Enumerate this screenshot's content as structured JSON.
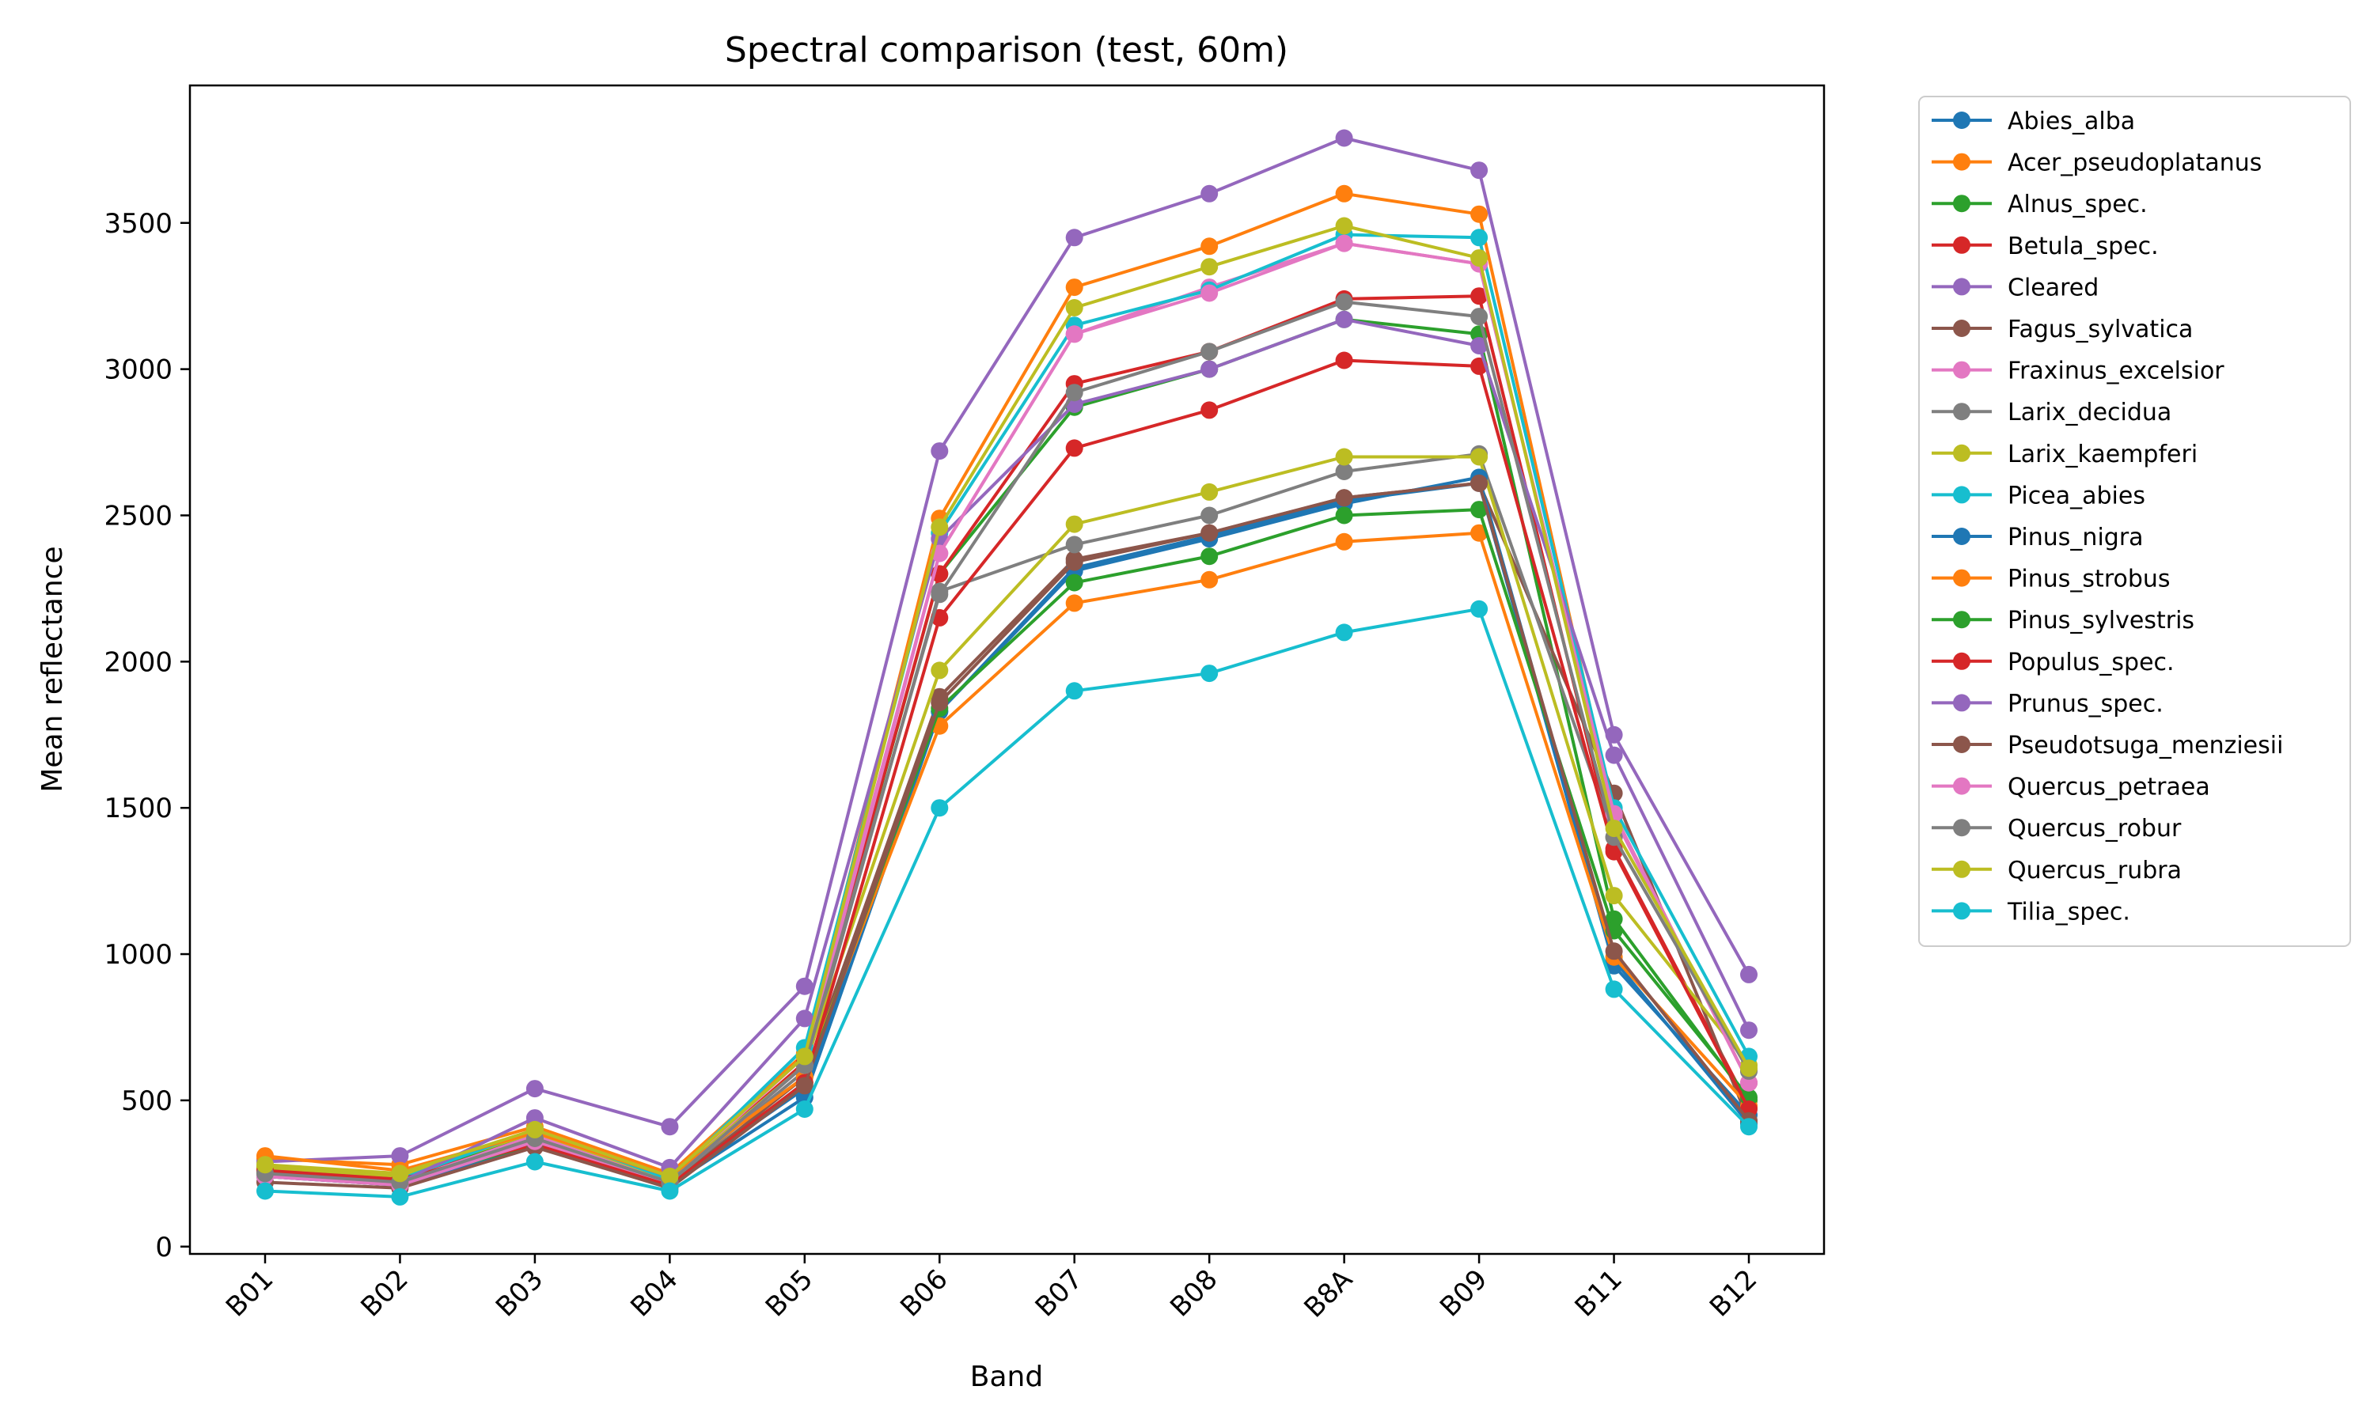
{
  "chart_data": {
    "type": "line",
    "title": "Spectral comparison (test, 60m)",
    "xlabel": "Band",
    "ylabel": "Mean reflectance",
    "categories": [
      "B01",
      "B02",
      "B03",
      "B04",
      "B05",
      "B06",
      "B07",
      "B08",
      "B8A",
      "B09",
      "B11",
      "B12"
    ],
    "ylim": [
      -25,
      3970
    ],
    "yticks": [
      0,
      500,
      1000,
      1500,
      2000,
      2500,
      3000,
      3500
    ],
    "grid": false,
    "legend_position": "outside-right",
    "series": [
      {
        "name": "Abies_alba",
        "color": "#1f77b4",
        "values": [
          260,
          230,
          360,
          220,
          540,
          1830,
          2320,
          2430,
          2550,
          2610,
          960,
          450
        ]
      },
      {
        "name": "Acer_pseudoplatanus",
        "color": "#ff7f0e",
        "values": [
          300,
          280,
          410,
          250,
          660,
          2490,
          3280,
          3420,
          3600,
          3530,
          1480,
          560
        ]
      },
      {
        "name": "Alnus_spec.",
        "color": "#2ca02c",
        "values": [
          270,
          240,
          380,
          230,
          620,
          2300,
          2870,
          3000,
          3170,
          3120,
          1120,
          500
        ]
      },
      {
        "name": "Betula_spec.",
        "color": "#d62728",
        "values": [
          260,
          230,
          370,
          225,
          630,
          2300,
          2950,
          3060,
          3240,
          3250,
          1360,
          480
        ]
      },
      {
        "name": "Cleared",
        "color": "#9467bd",
        "values": [
          290,
          310,
          540,
          410,
          890,
          2720,
          3450,
          3600,
          3790,
          3680,
          1750,
          930
        ]
      },
      {
        "name": "Fagus_sylvatica",
        "color": "#8c564b",
        "values": [
          240,
          210,
          350,
          210,
          580,
          1880,
          2350,
          2440,
          2560,
          2610,
          1550,
          430
        ]
      },
      {
        "name": "Fraxinus_excelsior",
        "color": "#e377c2",
        "values": [
          250,
          220,
          380,
          230,
          650,
          2370,
          3120,
          3280,
          3430,
          3360,
          1470,
          560
        ]
      },
      {
        "name": "Larix_decidua",
        "color": "#7f7f7f",
        "values": [
          250,
          220,
          370,
          220,
          600,
          2240,
          2400,
          2500,
          2650,
          2710,
          1400,
          600
        ]
      },
      {
        "name": "Larix_kaempferi",
        "color": "#bcbd22",
        "values": [
          270,
          240,
          390,
          230,
          620,
          1970,
          2470,
          2580,
          2700,
          2700,
          1200,
          620
        ]
      },
      {
        "name": "Picea_abies",
        "color": "#17becf",
        "values": [
          250,
          230,
          400,
          230,
          680,
          2440,
          3150,
          3270,
          3460,
          3450,
          1500,
          650
        ]
      },
      {
        "name": "Pinus_nigra",
        "color": "#1f77b4",
        "values": [
          240,
          210,
          350,
          210,
          510,
          1830,
          2310,
          2420,
          2540,
          2630,
          980,
          420
        ]
      },
      {
        "name": "Pinus_strobus",
        "color": "#ff7f0e",
        "values": [
          310,
          260,
          390,
          240,
          580,
          1780,
          2200,
          2280,
          2410,
          2440,
          990,
          480
        ]
      },
      {
        "name": "Pinus_sylvestris",
        "color": "#2ca02c",
        "values": [
          250,
          220,
          350,
          210,
          560,
          1840,
          2270,
          2360,
          2500,
          2520,
          1080,
          510
        ]
      },
      {
        "name": "Populus_spec.",
        "color": "#d62728",
        "values": [
          260,
          230,
          350,
          210,
          560,
          2150,
          2730,
          2860,
          3030,
          3010,
          1350,
          470
        ]
      },
      {
        "name": "Prunus_spec.",
        "color": "#9467bd",
        "values": [
          240,
          220,
          440,
          270,
          780,
          2420,
          2880,
          3000,
          3170,
          3080,
          1680,
          740
        ]
      },
      {
        "name": "Pseudotsuga_menziesii",
        "color": "#8c564b",
        "values": [
          220,
          200,
          340,
          200,
          550,
          1860,
          2340,
          2440,
          2560,
          2610,
          1010,
          430
        ]
      },
      {
        "name": "Quercus_petraea",
        "color": "#e377c2",
        "values": [
          240,
          210,
          360,
          220,
          620,
          2370,
          3120,
          3260,
          3430,
          3360,
          1480,
          560
        ]
      },
      {
        "name": "Quercus_robur",
        "color": "#7f7f7f",
        "values": [
          250,
          220,
          370,
          220,
          620,
          2230,
          2920,
          3060,
          3230,
          3180,
          1400,
          600
        ]
      },
      {
        "name": "Quercus_rubra",
        "color": "#bcbd22",
        "values": [
          280,
          250,
          400,
          240,
          650,
          2460,
          3210,
          3350,
          3490,
          3380,
          1430,
          610
        ]
      },
      {
        "name": "Tilia_spec.",
        "color": "#17becf",
        "values": [
          190,
          170,
          290,
          190,
          470,
          1500,
          1900,
          1960,
          2100,
          2180,
          880,
          410
        ]
      }
    ]
  }
}
